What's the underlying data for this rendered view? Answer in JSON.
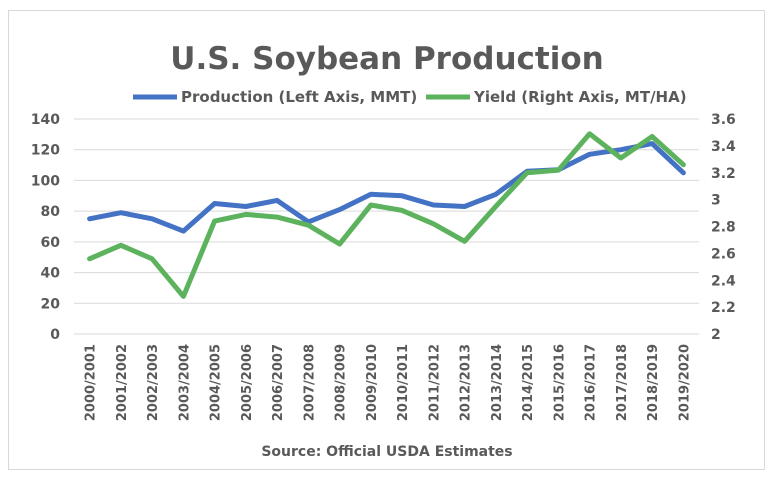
{
  "chart_data": {
    "type": "line",
    "title": "U.S. Soybean Production",
    "categories": [
      "2000/2001",
      "2001/2002",
      "2002/2003",
      "2003/2004",
      "2004/2005",
      "2005/2006",
      "2006/2007",
      "2007/2008",
      "2008/2009",
      "2009/2010",
      "2010/2011",
      "2011/2012",
      "2012/2013",
      "2013/2014",
      "2014/2015",
      "2015/2016",
      "2016/2017",
      "2017/2018",
      "2018/2019",
      "2019/2020"
    ],
    "series": [
      {
        "name": "Production (Left Axis, MMT)",
        "axis": "left",
        "color": "#4472c4",
        "values": [
          75,
          79,
          75,
          67,
          85,
          83,
          87,
          73,
          81,
          91,
          90,
          84,
          83,
          91,
          106,
          107,
          117,
          120,
          124,
          105
        ]
      },
      {
        "name": "Yield (Right Axis, MT/HA)",
        "axis": "right",
        "color": "#5cb25d",
        "values": [
          2.56,
          2.66,
          2.56,
          2.28,
          2.84,
          2.89,
          2.87,
          2.81,
          2.67,
          2.96,
          2.92,
          2.82,
          2.69,
          2.95,
          3.2,
          3.22,
          3.49,
          3.31,
          3.47,
          3.26
        ]
      }
    ],
    "yleft": {
      "min": 0,
      "max": 140,
      "step": 20,
      "ticks": [
        "0",
        "20",
        "40",
        "60",
        "80",
        "100",
        "120",
        "140"
      ]
    },
    "yright": {
      "min": 2.0,
      "max": 3.6,
      "step": 0.2,
      "ticks": [
        "2",
        "2.2",
        "2.4",
        "2.6",
        "2.8",
        "3",
        "3.2",
        "3.4",
        "3.6"
      ]
    },
    "grid": true,
    "legend_position": "top",
    "source": "Source: Official USDA Estimates"
  }
}
